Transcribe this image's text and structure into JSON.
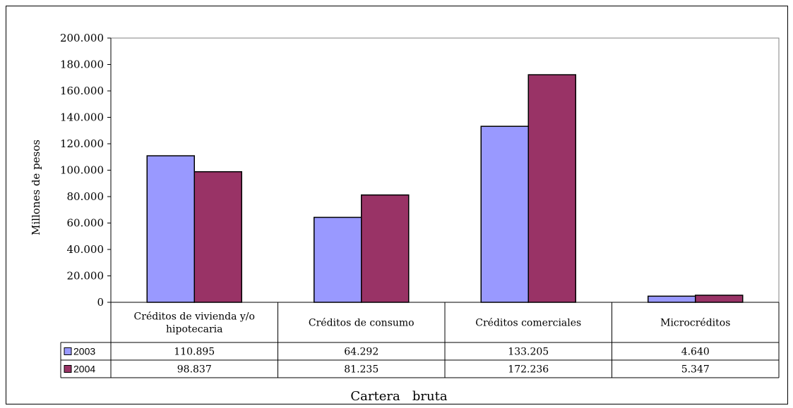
{
  "chart_data": {
    "type": "bar",
    "title": "",
    "ylabel": "Millones de pesos",
    "xlabel": "Cartera   bruta",
    "ylim": [
      0,
      200000
    ],
    "ytick_step": 20000,
    "ytick_labels": [
      "0",
      "20.000",
      "40.000",
      "60.000",
      "80.000",
      "100.000",
      "120.000",
      "140.000",
      "160.000",
      "180.000",
      "200.000"
    ],
    "categories": [
      [
        "Créditos de vivienda y/o",
        "hipotecaria"
      ],
      [
        "Créditos de consumo"
      ],
      [
        "Créditos comerciales"
      ],
      [
        "Microcréditos"
      ]
    ],
    "series": [
      {
        "name": "2003",
        "color": "#9999ff",
        "values": [
          110895,
          64292,
          133205,
          4640
        ],
        "labels": [
          "110.895",
          "64.292",
          "133.205",
          "4.640"
        ]
      },
      {
        "name": "2004",
        "color": "#993366",
        "values": [
          98837,
          81235,
          172236,
          5347
        ],
        "labels": [
          "98.837",
          "81.235",
          "172.236",
          "5.347"
        ]
      }
    ],
    "grid": false,
    "legend": "data-table"
  }
}
